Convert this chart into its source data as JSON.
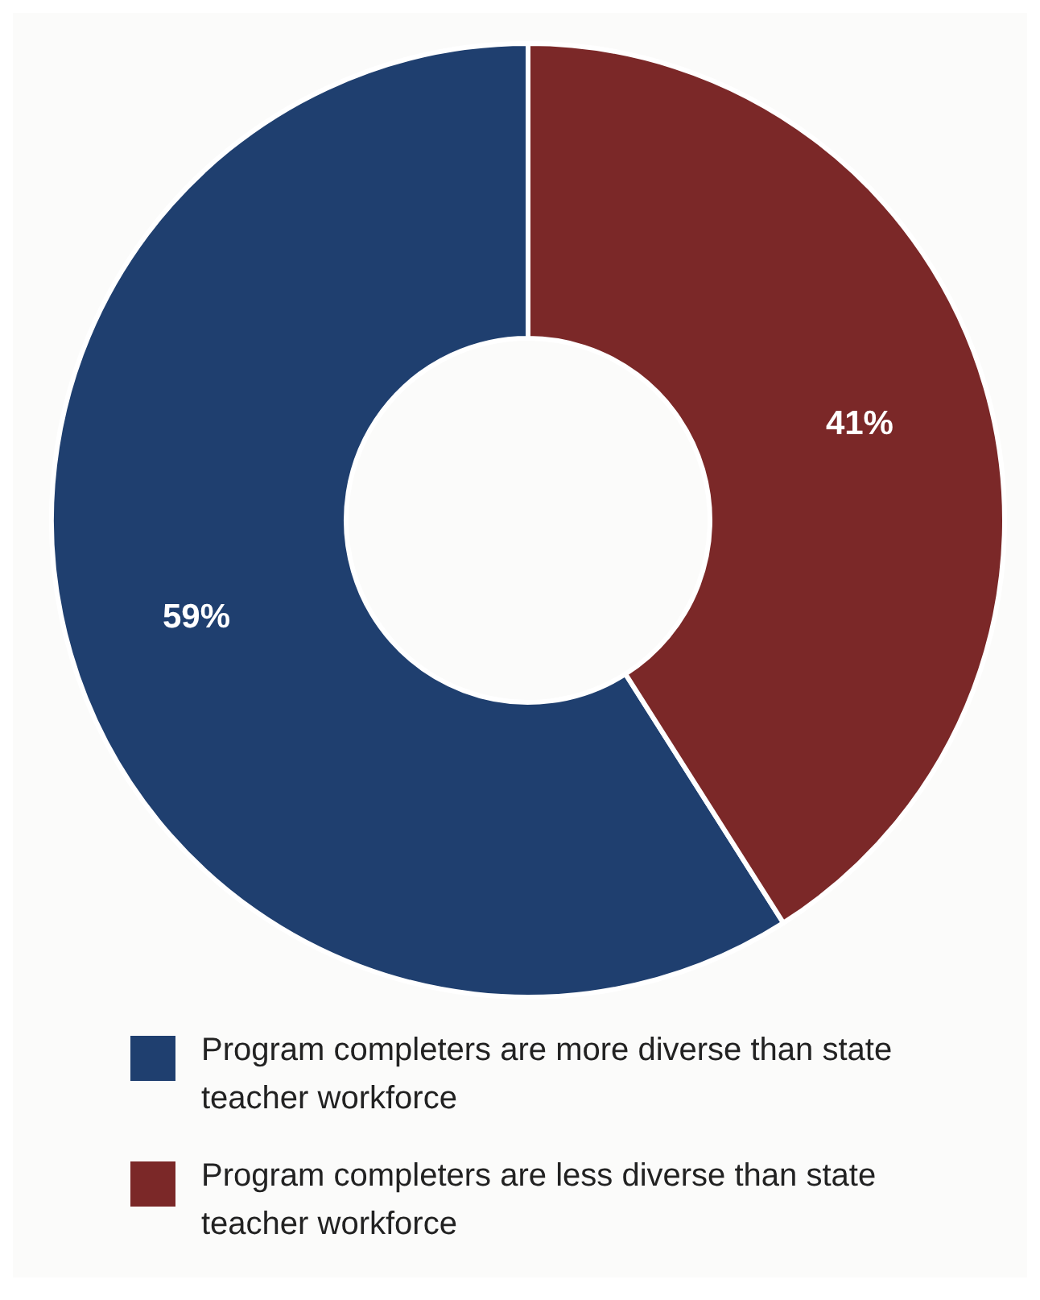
{
  "chart_data": {
    "type": "donut",
    "categories": [
      "Program completers are more diverse than state teacher workforce",
      "Program completers are less diverse than state teacher workforce"
    ],
    "values": [
      59,
      41
    ],
    "colors": [
      "#1f3f6f",
      "#7b2828"
    ],
    "value_labels": [
      "59%",
      "41%"
    ],
    "legend": "bottom"
  }
}
